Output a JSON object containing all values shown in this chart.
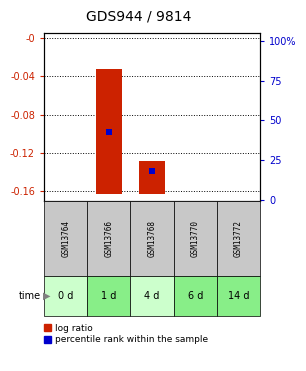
{
  "title": "GDS944 / 9814",
  "samples": [
    "GSM13764",
    "GSM13766",
    "GSM13768",
    "GSM13770",
    "GSM13772"
  ],
  "time_labels": [
    "0 d",
    "1 d",
    "4 d",
    "6 d",
    "14 d"
  ],
  "log_ratio_bottoms": [
    0.0,
    -0.163,
    -0.163,
    0.0,
    0.0
  ],
  "log_ratio_tops": [
    0.0,
    -0.032,
    -0.128,
    0.0,
    0.0
  ],
  "percentile_ranks": [
    null,
    43.0,
    18.0,
    null,
    null
  ],
  "ylim_left": [
    -0.17,
    0.005
  ],
  "ylim_right": [
    -0.85,
    105.25
  ],
  "yticks_left": [
    0.0,
    -0.04,
    -0.08,
    -0.12,
    -0.16
  ],
  "yticks_right": [
    0,
    25,
    50,
    75,
    100
  ],
  "ytick_labels_left": [
    "-0",
    "-0.04",
    "-0.08",
    "-0.12",
    "-0.16"
  ],
  "ytick_labels_right": [
    "0",
    "25",
    "50",
    "75",
    "100%"
  ],
  "bar_color": "#cc2200",
  "percentile_color": "#0000cc",
  "bg_label_row": "#c8c8c8",
  "bg_time_colors": [
    "#ccffcc",
    "#88ee88",
    "#ccffcc",
    "#88ee88",
    "#88ee88"
  ],
  "left_axis_color": "#cc2200",
  "right_axis_color": "#0000cc",
  "bar_width": 0.6,
  "legend_labels": [
    "log ratio",
    "percentile rank within the sample"
  ]
}
